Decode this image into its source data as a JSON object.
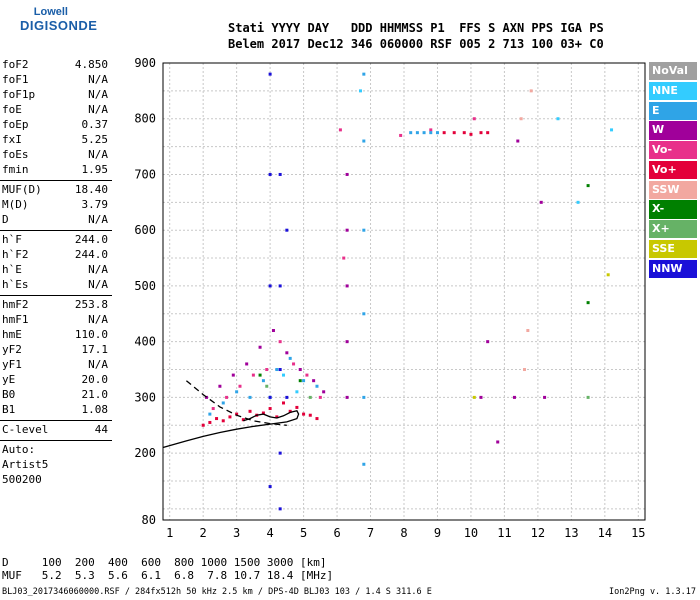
{
  "logo": {
    "brand": "Lowell",
    "name": "DIGISONDE"
  },
  "header": {
    "line1": "Stati YYYY DAY   DDD HHMMSS P1  FFS S AXN PPS IGA PS",
    "line2": "Belem 2017 Dec12 346 060000 RSF 005 2 713 100 03+ C0"
  },
  "params": [
    [
      {
        "k": "foF2",
        "v": "4.850"
      },
      {
        "k": "foF1",
        "v": "N/A"
      },
      {
        "k": "foF1p",
        "v": "N/A"
      },
      {
        "k": "foE",
        "v": "N/A"
      },
      {
        "k": "foEp",
        "v": "0.37"
      },
      {
        "k": "fxI",
        "v": "5.25"
      },
      {
        "k": "foEs",
        "v": "N/A"
      },
      {
        "k": "fmin",
        "v": "1.95"
      }
    ],
    [
      {
        "k": "MUF(D)",
        "v": "18.40"
      },
      {
        "k": "M(D)",
        "v": "3.79"
      },
      {
        "k": "D",
        "v": "N/A"
      }
    ],
    [
      {
        "k": "h`F",
        "v": "244.0"
      },
      {
        "k": "h`F2",
        "v": "244.0"
      },
      {
        "k": "h`E",
        "v": "N/A"
      },
      {
        "k": "h`Es",
        "v": "N/A"
      }
    ],
    [
      {
        "k": "hmF2",
        "v": "253.8"
      },
      {
        "k": "hmF1",
        "v": "N/A"
      },
      {
        "k": "hmE",
        "v": "110.0"
      },
      {
        "k": "yF2",
        "v": "17.1"
      },
      {
        "k": "yF1",
        "v": "N/A"
      },
      {
        "k": "yE",
        "v": "20.0"
      },
      {
        "k": "B0",
        "v": "21.0"
      },
      {
        "k": "B1",
        "v": "1.08"
      }
    ],
    [
      {
        "k": "C-level",
        "v": "44"
      }
    ],
    [
      {
        "k": "Auto:",
        "v": ""
      },
      {
        "k": "Artist5",
        "v": ""
      },
      {
        "k": "500200",
        "v": ""
      }
    ]
  ],
  "legend": [
    {
      "label": "NoVal",
      "color": "#a0a0a0"
    },
    {
      "label": "NNE",
      "color": "#33ccff"
    },
    {
      "label": "E",
      "color": "#2fa4e7"
    },
    {
      "label": "W",
      "color": "#a0009a"
    },
    {
      "label": "Vo-",
      "color": "#e8308a"
    },
    {
      "label": "Vo+",
      "color": "#e3003a"
    },
    {
      "label": "SSW",
      "color": "#f2a8a0"
    },
    {
      "label": "X-",
      "color": "#008000"
    },
    {
      "label": "X+",
      "color": "#66b266"
    },
    {
      "label": "SSE",
      "color": "#c8c800"
    },
    {
      "label": "NNW",
      "color": "#1a10d8"
    }
  ],
  "bottom": {
    "line1": "D     100  200  400  600  800 1000 1500 3000 [km]",
    "line2": "MUF   5.2  5.3  5.6  6.1  6.8  7.8 10.7 18.4 [MHz]"
  },
  "footer": "BLJ03_2017346060000.RSF / 284fx512h 50 kHz 2.5 km / DPS-4D BLJ03 103 / 1.4 S 311.6 E",
  "version": "Ion2Png v. 1.3.17",
  "chart_data": {
    "type": "scatter",
    "title": "",
    "xlabel": "",
    "ylabel": "",
    "xlim": [
      0.8,
      15.2
    ],
    "ylim": [
      80,
      900
    ],
    "x_ticks": [
      1,
      2,
      3,
      4,
      5,
      6,
      7,
      8,
      9,
      10,
      11,
      12,
      13,
      14,
      15
    ],
    "y_ticks": [
      80,
      200,
      300,
      400,
      500,
      600,
      700,
      800,
      900
    ],
    "grid": true,
    "legend_position": "right",
    "series": [
      {
        "name": "Vo+",
        "color": "#e3003a",
        "points": [
          [
            2.0,
            250
          ],
          [
            2.2,
            255
          ],
          [
            2.4,
            262
          ],
          [
            2.6,
            258
          ],
          [
            2.8,
            265
          ],
          [
            3.0,
            270
          ],
          [
            3.2,
            260
          ],
          [
            3.4,
            275
          ],
          [
            3.6,
            268
          ],
          [
            3.8,
            272
          ],
          [
            4.0,
            280
          ],
          [
            4.2,
            265
          ],
          [
            4.4,
            290
          ],
          [
            4.6,
            275
          ],
          [
            4.8,
            282
          ],
          [
            5.0,
            270
          ],
          [
            5.2,
            268
          ],
          [
            5.4,
            262
          ],
          [
            9.2,
            775
          ],
          [
            9.5,
            775
          ],
          [
            9.8,
            775
          ],
          [
            10.0,
            772
          ],
          [
            10.3,
            775
          ],
          [
            10.5,
            775
          ]
        ]
      },
      {
        "name": "W",
        "color": "#a0009a",
        "points": [
          [
            2.1,
            300
          ],
          [
            2.5,
            320
          ],
          [
            2.9,
            340
          ],
          [
            3.3,
            360
          ],
          [
            3.7,
            390
          ],
          [
            4.1,
            420
          ],
          [
            4.5,
            380
          ],
          [
            4.9,
            350
          ],
          [
            5.3,
            330
          ],
          [
            5.6,
            310
          ],
          [
            6.3,
            700
          ],
          [
            6.3,
            600
          ],
          [
            6.3,
            500
          ],
          [
            6.3,
            400
          ],
          [
            6.3,
            300
          ],
          [
            10.3,
            300
          ],
          [
            10.5,
            400
          ],
          [
            10.8,
            220
          ],
          [
            11.3,
            300
          ],
          [
            11.4,
            760
          ],
          [
            12.1,
            650
          ],
          [
            12.2,
            300
          ]
        ]
      },
      {
        "name": "Vo-",
        "color": "#e8308a",
        "points": [
          [
            2.3,
            280
          ],
          [
            2.7,
            300
          ],
          [
            3.1,
            320
          ],
          [
            3.5,
            340
          ],
          [
            3.9,
            350
          ],
          [
            4.3,
            400
          ],
          [
            4.7,
            360
          ],
          [
            5.1,
            340
          ],
          [
            5.5,
            300
          ],
          [
            6.1,
            780
          ],
          [
            6.2,
            550
          ],
          [
            7.9,
            770
          ],
          [
            8.8,
            780
          ],
          [
            10.1,
            800
          ]
        ]
      },
      {
        "name": "E",
        "color": "#2fa4e7",
        "points": [
          [
            2.2,
            270
          ],
          [
            2.6,
            290
          ],
          [
            3.0,
            310
          ],
          [
            3.4,
            300
          ],
          [
            3.8,
            330
          ],
          [
            4.2,
            350
          ],
          [
            4.6,
            370
          ],
          [
            5.0,
            330
          ],
          [
            5.4,
            320
          ],
          [
            6.8,
            880
          ],
          [
            6.8,
            760
          ],
          [
            6.8,
            600
          ],
          [
            6.8,
            450
          ],
          [
            6.8,
            300
          ],
          [
            6.8,
            180
          ],
          [
            8.2,
            775
          ],
          [
            8.4,
            775
          ],
          [
            8.6,
            775
          ],
          [
            8.8,
            775
          ],
          [
            9.0,
            775
          ]
        ]
      },
      {
        "name": "NNE",
        "color": "#33ccff",
        "points": [
          [
            4.0,
            300
          ],
          [
            4.4,
            340
          ],
          [
            4.8,
            310
          ],
          [
            6.7,
            850
          ],
          [
            12.6,
            800
          ],
          [
            13.2,
            650
          ],
          [
            14.2,
            780
          ]
        ]
      },
      {
        "name": "SSW",
        "color": "#f2a8a0",
        "points": [
          [
            11.6,
            350
          ],
          [
            11.7,
            420
          ],
          [
            11.8,
            850
          ],
          [
            11.5,
            800
          ]
        ]
      },
      {
        "name": "X-",
        "color": "#008000",
        "points": [
          [
            3.7,
            340
          ],
          [
            4.9,
            330
          ],
          [
            13.5,
            680
          ],
          [
            13.5,
            470
          ]
        ]
      },
      {
        "name": "X+",
        "color": "#66b266",
        "points": [
          [
            3.9,
            320
          ],
          [
            5.2,
            300
          ],
          [
            13.5,
            300
          ]
        ]
      },
      {
        "name": "SSE",
        "color": "#c8c800",
        "points": [
          [
            10.1,
            300
          ],
          [
            14.1,
            520
          ]
        ]
      },
      {
        "name": "NNW",
        "color": "#1a10d8",
        "points": [
          [
            4.0,
            880
          ],
          [
            4.0,
            700
          ],
          [
            4.0,
            500
          ],
          [
            4.0,
            300
          ],
          [
            4.0,
            140
          ],
          [
            4.3,
            700
          ],
          [
            4.3,
            500
          ],
          [
            4.3,
            350
          ],
          [
            4.3,
            200
          ],
          [
            4.3,
            100
          ],
          [
            4.5,
            600
          ],
          [
            4.5,
            300
          ]
        ]
      }
    ],
    "lines": [
      {
        "name": "profile-solid",
        "points": [
          [
            0.8,
            210
          ],
          [
            1.5,
            222
          ],
          [
            2.0,
            230
          ],
          [
            2.5,
            237
          ],
          [
            3.0,
            243
          ],
          [
            3.5,
            248
          ],
          [
            4.0,
            252
          ],
          [
            4.5,
            256
          ],
          [
            4.8,
            262
          ],
          [
            4.85,
            270
          ],
          [
            4.8,
            276
          ],
          [
            4.6,
            273
          ],
          [
            4.4,
            267
          ],
          [
            4.2,
            263
          ],
          [
            4.0,
            265
          ],
          [
            3.8,
            270
          ],
          [
            3.6,
            268
          ],
          [
            3.4,
            262
          ],
          [
            3.2,
            258
          ]
        ]
      },
      {
        "name": "profile-dashed",
        "points": [
          [
            1.5,
            330
          ],
          [
            2.0,
            305
          ],
          [
            2.5,
            283
          ],
          [
            3.0,
            268
          ],
          [
            3.5,
            258
          ],
          [
            4.0,
            253
          ],
          [
            4.5,
            250
          ]
        ]
      }
    ]
  }
}
